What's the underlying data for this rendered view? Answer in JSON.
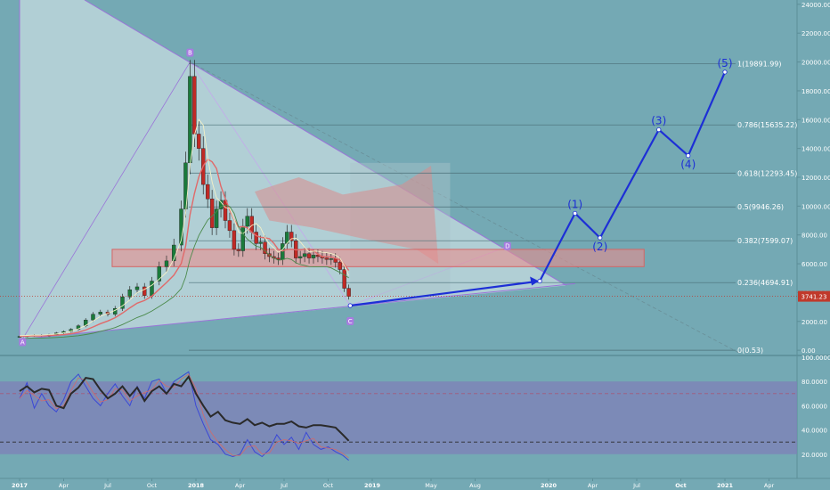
{
  "chart_data": {
    "type": "candlestick",
    "price_axis": {
      "ticks": [
        "24000.00",
        "22000.00",
        "20000.00",
        "18000.00",
        "16000.00",
        "14000.00",
        "12000.00",
        "10000.00",
        "8000.00",
        "6000.00",
        "4000.00",
        "2000.00",
        "0.00"
      ],
      "tick_values": [
        24000,
        22000,
        20000,
        18000,
        16000,
        14000,
        12000,
        10000,
        8000,
        6000,
        4000,
        2000,
        0
      ],
      "current_price_label": "3741.23",
      "current_price": 3741.23,
      "ylim": [
        -300,
        24300
      ]
    },
    "oscillator_axis": {
      "ticks": [
        "100.0000",
        "80.0000",
        "60.0000",
        "40.0000",
        "20.0000"
      ],
      "tick_values": [
        100,
        80,
        60,
        40,
        20
      ],
      "overbought": 80,
      "oversold": 20,
      "ylim": [
        0,
        100
      ]
    },
    "time_axis": {
      "labels": [
        "2017",
        "Apr",
        "Jul",
        "Oct",
        "2018",
        "Apr",
        "Jul",
        "Oct",
        "2019",
        "May",
        "Aug",
        "2020",
        "Apr",
        "Jul",
        "Oct",
        "2021",
        "Apr"
      ],
      "bold": [
        true,
        false,
        false,
        false,
        true,
        false,
        false,
        false,
        true,
        false,
        false,
        true,
        false,
        false,
        true,
        true,
        false
      ],
      "positions": [
        0,
        3,
        6,
        9,
        12,
        15,
        18,
        21,
        24,
        28,
        31,
        36,
        39,
        42,
        45,
        48,
        51
      ]
    },
    "fib_levels": [
      {
        "label": "1(19891.99)",
        "value": 19891.99
      },
      {
        "label": "0.786(15635.22)",
        "value": 15635.22
      },
      {
        "label": "0.618(12293.45)",
        "value": 12293.45
      },
      {
        "label": "0.5(9946.26)",
        "value": 9946.26
      },
      {
        "label": "0.382(7599.07)",
        "value": 7599.07
      },
      {
        "label": "0.236(4694.91)",
        "value": 4694.91
      },
      {
        "label": "0(0.53)",
        "value": 0.53
      }
    ],
    "points": [
      {
        "label": "A",
        "t": 0.2,
        "value": 780
      },
      {
        "label": "B",
        "t": 11.6,
        "value": 20000
      },
      {
        "label": "C",
        "t": 22.5,
        "value": 3100
      },
      {
        "label": "D",
        "t": 33.2,
        "value": 7200
      }
    ],
    "projection_waves": [
      {
        "label": "(1)",
        "t": 37.8,
        "value": 9500
      },
      {
        "label": "(2)",
        "t": 39.5,
        "value": 7800
      },
      {
        "label": "(3)",
        "t": 43.5,
        "value": 15300
      },
      {
        "label": "(4)",
        "t": 45.5,
        "value": 13500
      },
      {
        "label": "(5)",
        "t": 48.0,
        "value": 19300
      }
    ],
    "projection_path": [
      [
        22.5,
        3100
      ],
      [
        35.4,
        4800
      ],
      [
        37.8,
        9500
      ],
      [
        39.5,
        7800
      ],
      [
        43.5,
        15300
      ],
      [
        45.5,
        13500
      ],
      [
        48.0,
        19300
      ]
    ],
    "resistance_zone": {
      "from_t": 6.3,
      "to_t": 42.5,
      "low": 5800,
      "high": 7000
    },
    "weekly_closes": [
      [
        0.0,
        960
      ],
      [
        0.5,
        1000
      ],
      [
        1.0,
        1050
      ],
      [
        1.5,
        990
      ],
      [
        2.0,
        1080
      ],
      [
        2.5,
        1200
      ],
      [
        3.0,
        1300
      ],
      [
        3.5,
        1450
      ],
      [
        4.0,
        1700
      ],
      [
        4.5,
        2100
      ],
      [
        5.0,
        2500
      ],
      [
        5.5,
        2650
      ],
      [
        6.0,
        2500
      ],
      [
        6.5,
        2900
      ],
      [
        7.0,
        3700
      ],
      [
        7.5,
        4200
      ],
      [
        8.0,
        4400
      ],
      [
        8.5,
        3800
      ],
      [
        9.0,
        4800
      ],
      [
        9.5,
        5800
      ],
      [
        10.0,
        6200
      ],
      [
        10.5,
        7300
      ],
      [
        11.0,
        9800
      ],
      [
        11.3,
        13000
      ],
      [
        11.6,
        19000
      ],
      [
        11.9,
        15000
      ],
      [
        12.2,
        14000
      ],
      [
        12.5,
        11500
      ],
      [
        12.8,
        10500
      ],
      [
        13.1,
        8500
      ],
      [
        13.4,
        9800
      ],
      [
        13.7,
        10400
      ],
      [
        14.0,
        9000
      ],
      [
        14.3,
        8300
      ],
      [
        14.6,
        7000
      ],
      [
        14.9,
        6900
      ],
      [
        15.2,
        8600
      ],
      [
        15.5,
        9300
      ],
      [
        15.8,
        8200
      ],
      [
        16.1,
        7400
      ],
      [
        16.4,
        7500
      ],
      [
        16.7,
        6700
      ],
      [
        17.0,
        6500
      ],
      [
        17.3,
        6400
      ],
      [
        17.6,
        6300
      ],
      [
        17.9,
        7400
      ],
      [
        18.2,
        8200
      ],
      [
        18.5,
        7600
      ],
      [
        18.8,
        6400
      ],
      [
        19.1,
        6500
      ],
      [
        19.4,
        6700
      ],
      [
        19.7,
        6400
      ],
      [
        20.0,
        6600
      ],
      [
        20.3,
        6500
      ],
      [
        20.6,
        6400
      ],
      [
        20.9,
        6300
      ],
      [
        21.2,
        6350
      ],
      [
        21.5,
        6100
      ],
      [
        21.8,
        5600
      ],
      [
        22.1,
        4300
      ],
      [
        22.4,
        3740
      ]
    ],
    "rsi_line": [
      [
        0.0,
        72
      ],
      [
        0.5,
        76
      ],
      [
        1.0,
        71
      ],
      [
        1.5,
        74
      ],
      [
        2.0,
        73
      ],
      [
        2.5,
        60
      ],
      [
        3.0,
        58
      ],
      [
        3.5,
        70
      ],
      [
        4.0,
        75
      ],
      [
        4.5,
        83
      ],
      [
        5.0,
        82
      ],
      [
        5.5,
        73
      ],
      [
        6.0,
        66
      ],
      [
        6.5,
        70
      ],
      [
        7.0,
        76
      ],
      [
        7.5,
        68
      ],
      [
        8.0,
        75
      ],
      [
        8.5,
        64
      ],
      [
        9.0,
        72
      ],
      [
        9.5,
        76
      ],
      [
        10.0,
        70
      ],
      [
        10.5,
        78
      ],
      [
        11.0,
        76
      ],
      [
        11.5,
        84
      ],
      [
        12.0,
        70
      ],
      [
        12.5,
        60
      ],
      [
        13.0,
        51
      ],
      [
        13.5,
        55
      ],
      [
        14.0,
        48
      ],
      [
        14.5,
        46
      ],
      [
        15.0,
        45
      ],
      [
        15.5,
        49
      ],
      [
        16.0,
        44
      ],
      [
        16.5,
        46
      ],
      [
        17.0,
        43
      ],
      [
        17.5,
        45
      ],
      [
        18.0,
        45
      ],
      [
        18.5,
        47
      ],
      [
        19.0,
        43
      ],
      [
        19.5,
        42
      ],
      [
        20.0,
        44
      ],
      [
        20.5,
        44
      ],
      [
        21.0,
        43
      ],
      [
        21.5,
        42
      ],
      [
        22.0,
        36
      ],
      [
        22.4,
        31
      ]
    ],
    "stoch_line": [
      [
        0.0,
        66
      ],
      [
        0.5,
        79
      ],
      [
        1.0,
        58
      ],
      [
        1.5,
        70
      ],
      [
        2.0,
        60
      ],
      [
        2.5,
        55
      ],
      [
        3.0,
        65
      ],
      [
        3.5,
        80
      ],
      [
        4.0,
        86
      ],
      [
        4.5,
        76
      ],
      [
        5.0,
        66
      ],
      [
        5.5,
        60
      ],
      [
        6.0,
        70
      ],
      [
        6.5,
        78
      ],
      [
        7.0,
        68
      ],
      [
        7.5,
        60
      ],
      [
        8.0,
        76
      ],
      [
        8.5,
        66
      ],
      [
        9.0,
        80
      ],
      [
        9.5,
        82
      ],
      [
        10.0,
        70
      ],
      [
        10.5,
        80
      ],
      [
        11.0,
        84
      ],
      [
        11.5,
        88
      ],
      [
        12.0,
        60
      ],
      [
        12.5,
        45
      ],
      [
        13.0,
        32
      ],
      [
        13.5,
        28
      ],
      [
        14.0,
        20
      ],
      [
        14.5,
        18
      ],
      [
        15.0,
        20
      ],
      [
        15.5,
        32
      ],
      [
        16.0,
        22
      ],
      [
        16.5,
        18
      ],
      [
        17.0,
        24
      ],
      [
        17.5,
        36
      ],
      [
        18.0,
        28
      ],
      [
        18.5,
        34
      ],
      [
        19.0,
        24
      ],
      [
        19.5,
        38
      ],
      [
        20.0,
        28
      ],
      [
        20.5,
        24
      ],
      [
        21.0,
        26
      ],
      [
        21.5,
        22
      ],
      [
        22.0,
        19
      ],
      [
        22.4,
        15
      ]
    ]
  }
}
